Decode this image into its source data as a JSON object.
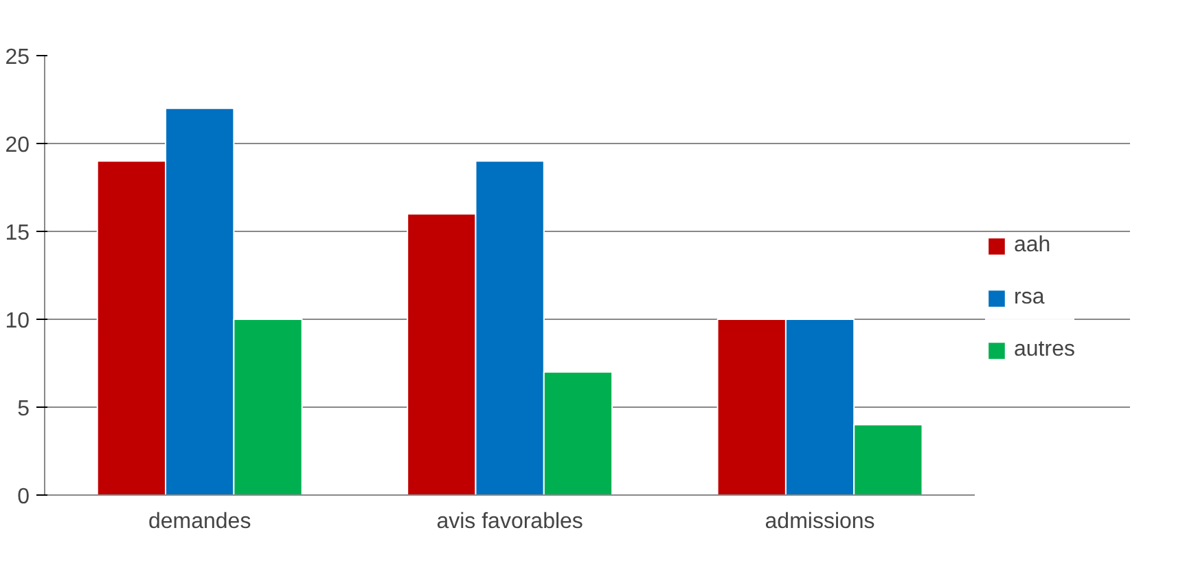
{
  "chart_data": {
    "type": "bar",
    "categories": [
      "demandes",
      "avis favorables",
      "admissions"
    ],
    "series": [
      {
        "name": "aah",
        "color": "#c00000",
        "values": [
          19,
          16,
          10
        ]
      },
      {
        "name": "rsa",
        "color": "#0070c0",
        "values": [
          22,
          19,
          10
        ]
      },
      {
        "name": "autres",
        "color": "#00b050",
        "values": [
          10,
          7,
          4
        ]
      }
    ],
    "ylim": [
      0,
      25
    ],
    "yticks": [
      0,
      5,
      10,
      15,
      20,
      25
    ],
    "grid": "y",
    "legend": "right"
  }
}
